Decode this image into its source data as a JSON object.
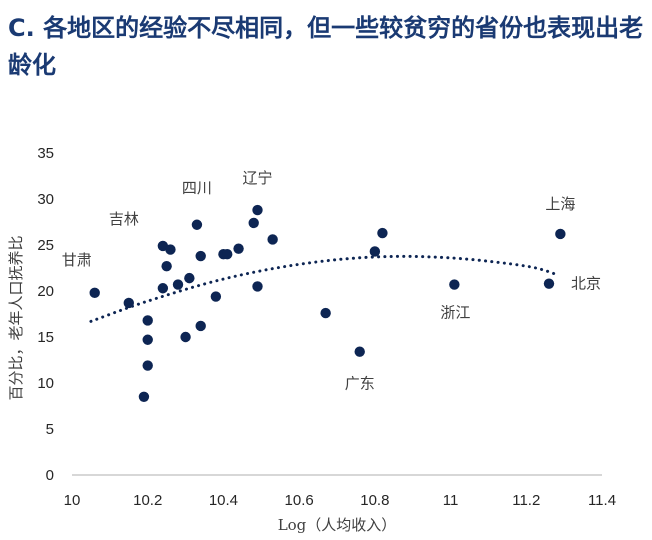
{
  "chart_data": {
    "type": "scatter",
    "title": "C. 各地区的经验不尽相同，但一些较贫穷的省份也表现出老龄化",
    "xlabel": "Log（人均收入）",
    "ylabel": "百分比，老年人口抚养比",
    "xlim": [
      10,
      11.4
    ],
    "ylim": [
      0,
      35
    ],
    "x_ticks": [
      "10",
      "10.2",
      "10.4",
      "10.6",
      "10.8",
      "11",
      "11.2",
      "11.4"
    ],
    "y_ticks": [
      "0",
      "5",
      "10",
      "15",
      "20",
      "25",
      "30",
      "35"
    ],
    "grid": false,
    "trendline": "polynomial (dotted)",
    "points": [
      {
        "x": 10.06,
        "y": 19.8,
        "label": "甘肃"
      },
      {
        "x": 10.15,
        "y": 18.7,
        "label": ""
      },
      {
        "x": 10.19,
        "y": 8.5,
        "label": ""
      },
      {
        "x": 10.2,
        "y": 16.8,
        "label": ""
      },
      {
        "x": 10.2,
        "y": 14.7,
        "label": ""
      },
      {
        "x": 10.2,
        "y": 11.9,
        "label": ""
      },
      {
        "x": 10.24,
        "y": 24.9,
        "label": "吉林"
      },
      {
        "x": 10.24,
        "y": 20.3,
        "label": ""
      },
      {
        "x": 10.25,
        "y": 22.7,
        "label": ""
      },
      {
        "x": 10.26,
        "y": 24.5,
        "label": ""
      },
      {
        "x": 10.28,
        "y": 20.7,
        "label": ""
      },
      {
        "x": 10.3,
        "y": 15.0,
        "label": ""
      },
      {
        "x": 10.31,
        "y": 21.4,
        "label": ""
      },
      {
        "x": 10.33,
        "y": 27.2,
        "label": "四川"
      },
      {
        "x": 10.34,
        "y": 23.8,
        "label": ""
      },
      {
        "x": 10.34,
        "y": 16.2,
        "label": ""
      },
      {
        "x": 10.38,
        "y": 19.4,
        "label": ""
      },
      {
        "x": 10.4,
        "y": 24.0,
        "label": ""
      },
      {
        "x": 10.41,
        "y": 24.0,
        "label": ""
      },
      {
        "x": 10.44,
        "y": 24.6,
        "label": ""
      },
      {
        "x": 10.48,
        "y": 27.4,
        "label": ""
      },
      {
        "x": 10.49,
        "y": 28.8,
        "label": "辽宁"
      },
      {
        "x": 10.49,
        "y": 20.5,
        "label": ""
      },
      {
        "x": 10.53,
        "y": 25.6,
        "label": ""
      },
      {
        "x": 10.67,
        "y": 17.6,
        "label": ""
      },
      {
        "x": 10.76,
        "y": 13.4,
        "label": "广东"
      },
      {
        "x": 10.8,
        "y": 24.3,
        "label": ""
      },
      {
        "x": 10.82,
        "y": 26.3,
        "label": ""
      },
      {
        "x": 11.01,
        "y": 20.7,
        "label": "浙江"
      },
      {
        "x": 11.26,
        "y": 20.8,
        "label": "北京"
      },
      {
        "x": 11.29,
        "y": 26.2,
        "label": "上海"
      }
    ],
    "trend_points": [
      {
        "x": 10.05,
        "y": 16.7
      },
      {
        "x": 10.2,
        "y": 18.9
      },
      {
        "x": 10.4,
        "y": 21.3
      },
      {
        "x": 10.6,
        "y": 22.9
      },
      {
        "x": 10.8,
        "y": 23.7
      },
      {
        "x": 11.0,
        "y": 23.6
      },
      {
        "x": 11.2,
        "y": 22.7
      },
      {
        "x": 11.28,
        "y": 21.8
      }
    ],
    "colors": {
      "point": "#0d2553",
      "title": "#1a3a73",
      "trend": "#0d2553"
    }
  }
}
